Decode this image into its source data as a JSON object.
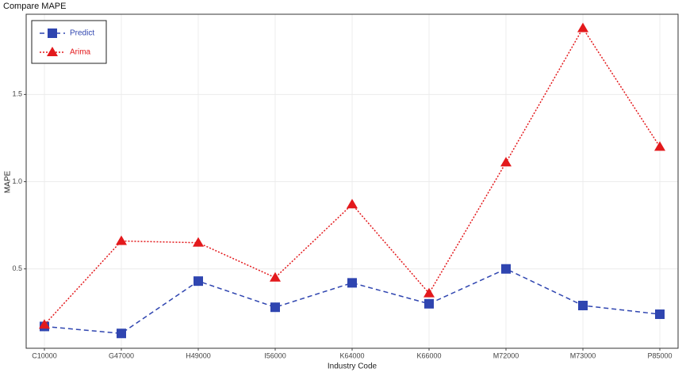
{
  "chart_data": {
    "type": "line",
    "title": "Compare MAPE",
    "xlabel": "Industry Code",
    "ylabel": "MAPE",
    "categories": [
      "C10000",
      "G47000",
      "H49000",
      "I56000",
      "K64000",
      "K66000",
      "M72000",
      "M73000",
      "P85000"
    ],
    "series": [
      {
        "name": "Predict",
        "color": "#2f45b0",
        "linestyle": "dashed",
        "marker": "square",
        "values": [
          0.17,
          0.13,
          0.43,
          0.28,
          0.42,
          0.3,
          0.5,
          0.29,
          0.24
        ]
      },
      {
        "name": "Arima",
        "color": "#e3191c",
        "linestyle": "dotted",
        "marker": "triangle",
        "values": [
          0.18,
          0.66,
          0.65,
          0.45,
          0.87,
          0.36,
          1.11,
          1.88,
          1.2
        ]
      }
    ],
    "ylim": [
      0.045,
      1.96
    ],
    "yticks": [
      0.5,
      {
        "value": 1,
        "label": "1.0"
      },
      1.5
    ],
    "grid": true,
    "legend": "top-left"
  }
}
